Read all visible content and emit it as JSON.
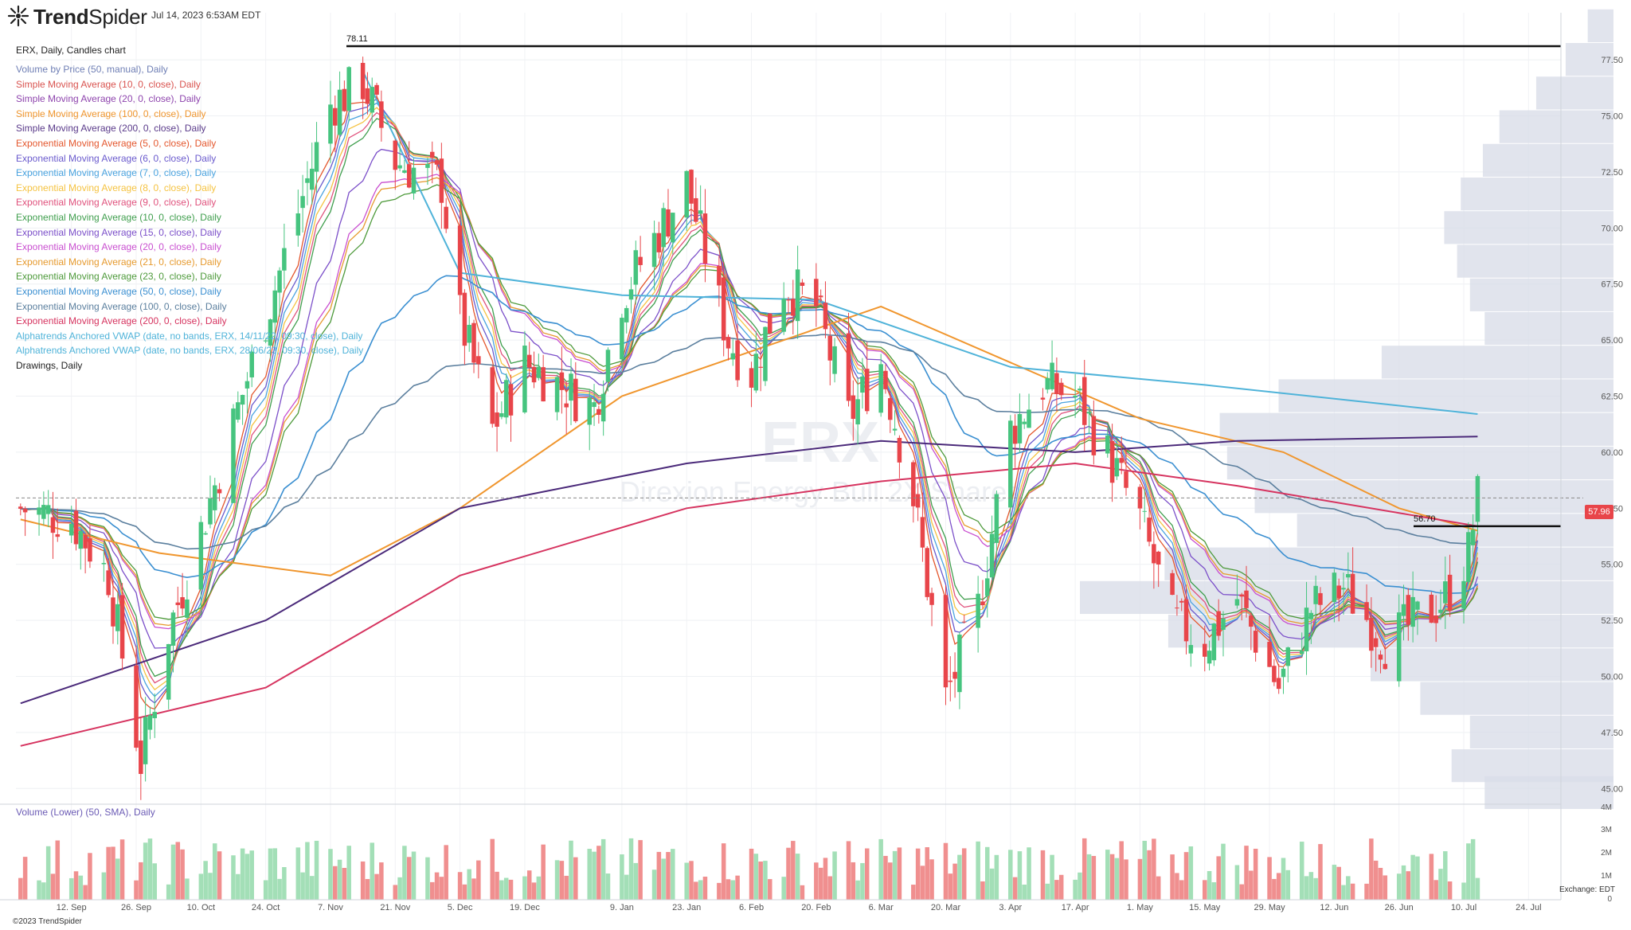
{
  "app": {
    "brand_prefix": "Trend",
    "brand_suffix": "Spider",
    "timestamp": "Jul 14, 2023 6:53AM EDT",
    "copyright": "©2023 TrendSpider",
    "exchange": "Exchange: EDT",
    "watermark_ticker": "ERX",
    "watermark_name": "Direxion Energy Bull 2X Shares"
  },
  "chart_title": "ERX, Daily, Candles chart",
  "legend": [
    {
      "text": "Volume by Price (50, manual), Daily",
      "color": "#6f7fb5"
    },
    {
      "text": "Simple Moving Average (10, 0, close), Daily",
      "color": "#d9534f"
    },
    {
      "text": "Simple Moving Average (20, 0, close), Daily",
      "color": "#8e44ad"
    },
    {
      "text": "Simple Moving Average (100, 0, close), Daily",
      "color": "#f0962e"
    },
    {
      "text": "Simple Moving Average (200, 0, close), Daily",
      "color": "#5a3a8a"
    },
    {
      "text": "Exponential Moving Average (5, 0, close), Daily",
      "color": "#e4572e"
    },
    {
      "text": "Exponential Moving Average (6, 0, close), Daily",
      "color": "#6a5acd"
    },
    {
      "text": "Exponential Moving Average (7, 0, close), Daily",
      "color": "#4aa3df"
    },
    {
      "text": "Exponential Moving Average (8, 0, close), Daily",
      "color": "#f5c342"
    },
    {
      "text": "Exponential Moving Average (9, 0, close), Daily",
      "color": "#e0527d"
    },
    {
      "text": "Exponential Moving Average (10, 0, close), Daily",
      "color": "#3f9e4d"
    },
    {
      "text": "Exponential Moving Average (15, 0, close), Daily",
      "color": "#7b4fc9"
    },
    {
      "text": "Exponential Moving Average (20, 0, close), Daily",
      "color": "#c94fd0"
    },
    {
      "text": "Exponential Moving Average (21, 0, close), Daily",
      "color": "#e69a2e"
    },
    {
      "text": "Exponential Moving Average (23, 0, close), Daily",
      "color": "#4e9a3b"
    },
    {
      "text": "Exponential Moving Average (50, 0, close), Daily",
      "color": "#3a8fd1"
    },
    {
      "text": "Exponential Moving Average (100, 0, close), Daily",
      "color": "#5b7f9e"
    },
    {
      "text": "Exponential Moving Average (200, 0, close), Daily",
      "color": "#d6335f"
    },
    {
      "text": "Alphatrends Anchored VWAP (date, no bands, ERX, 14/11/22, 09:30, close), Daily",
      "color": "#4fb3d9"
    },
    {
      "text": "Alphatrends Anchored VWAP (date, no bands, ERX, 28/06/23, 09:30, close), Daily",
      "color": "#4fb3d9"
    },
    {
      "text": "Drawings, Daily",
      "color": "#222222"
    }
  ],
  "volume_label": "Volume (Lower) (50, SMA), Daily",
  "current_price_label": "57.96",
  "colors": {
    "up": "#46c47f",
    "down": "#e8454a",
    "volume_up": "#a3dfb7",
    "volume_down": "#f08f8f",
    "vbp": "#d9dde9"
  },
  "chart_data": {
    "type": "candlestick",
    "symbol": "ERX",
    "interval": "Daily",
    "ylim": [
      44.3,
      79.6
    ],
    "y_ticks": [
      "77.50",
      "75.00",
      "72.50",
      "70.00",
      "67.50",
      "65.00",
      "62.50",
      "60.00",
      "57.50",
      "55.00",
      "52.50",
      "50.00",
      "47.50",
      "45.00"
    ],
    "x_ticks": [
      "12. Sep",
      "26. Sep",
      "10. Oct",
      "24. Oct",
      "7. Nov",
      "21. Nov",
      "5. Dec",
      "19. Dec",
      "9. Jan",
      "23. Jan",
      "6. Feb",
      "20. Feb",
      "6. Mar",
      "20. Mar",
      "3. Apr",
      "17. Apr",
      "1. May",
      "15. May",
      "29. May",
      "12. Jun",
      "26. Jun",
      "10. Jul",
      "24. Jul"
    ],
    "last_close": 57.96,
    "horizontal_levels": [
      {
        "price": 78.11,
        "label": "78.11"
      },
      {
        "price": 56.7,
        "label": "56.70"
      }
    ],
    "volume_ticks": [
      "4M",
      "3M",
      "2M",
      "1M",
      "0"
    ],
    "close_path": [
      {
        "x": "2022-09-01",
        "y": 57.5
      },
      {
        "x": "2022-09-12",
        "y": 57.0
      },
      {
        "x": "2022-09-20",
        "y": 54.5
      },
      {
        "x": "2022-09-27",
        "y": 46.2
      },
      {
        "x": "2022-10-03",
        "y": 52.0
      },
      {
        "x": "2022-10-10",
        "y": 56.5
      },
      {
        "x": "2022-10-24",
        "y": 66.0
      },
      {
        "x": "2022-11-07",
        "y": 75.5
      },
      {
        "x": "2022-11-14",
        "y": 76.5
      },
      {
        "x": "2022-11-21",
        "y": 73.0
      },
      {
        "x": "2022-12-01",
        "y": 72.0
      },
      {
        "x": "2022-12-05",
        "y": 66.0
      },
      {
        "x": "2022-12-12",
        "y": 61.0
      },
      {
        "x": "2022-12-19",
        "y": 64.0
      },
      {
        "x": "2023-01-03",
        "y": 62.0
      },
      {
        "x": "2023-01-09",
        "y": 67.0
      },
      {
        "x": "2023-01-23",
        "y": 72.0
      },
      {
        "x": "2023-02-01",
        "y": 65.0
      },
      {
        "x": "2023-02-06",
        "y": 63.5
      },
      {
        "x": "2023-02-13",
        "y": 67.5
      },
      {
        "x": "2023-02-20",
        "y": 66.5
      },
      {
        "x": "2023-02-27",
        "y": 61.5
      },
      {
        "x": "2023-03-06",
        "y": 64.0
      },
      {
        "x": "2023-03-13",
        "y": 58.0
      },
      {
        "x": "2023-03-20",
        "y": 49.0
      },
      {
        "x": "2023-03-27",
        "y": 53.0
      },
      {
        "x": "2023-04-03",
        "y": 61.0
      },
      {
        "x": "2023-04-10",
        "y": 63.0
      },
      {
        "x": "2023-04-17",
        "y": 62.5
      },
      {
        "x": "2023-04-25",
        "y": 59.5
      },
      {
        "x": "2023-05-01",
        "y": 57.0
      },
      {
        "x": "2023-05-08",
        "y": 52.5
      },
      {
        "x": "2023-05-15",
        "y": 51.5
      },
      {
        "x": "2023-05-22",
        "y": 53.5
      },
      {
        "x": "2023-05-31",
        "y": 49.5
      },
      {
        "x": "2023-06-07",
        "y": 53.0
      },
      {
        "x": "2023-06-14",
        "y": 54.0
      },
      {
        "x": "2023-06-23",
        "y": 51.5
      },
      {
        "x": "2023-06-30",
        "y": 52.5
      },
      {
        "x": "2023-07-06",
        "y": 53.5
      },
      {
        "x": "2023-07-11",
        "y": 55.5
      },
      {
        "x": "2023-07-13",
        "y": 57.96
      }
    ],
    "sma_100": [
      {
        "x": "2022-09-01",
        "y": 57.0
      },
      {
        "x": "2022-10-01",
        "y": 55.5
      },
      {
        "x": "2022-11-07",
        "y": 54.5
      },
      {
        "x": "2022-12-05",
        "y": 57.5
      },
      {
        "x": "2023-01-09",
        "y": 62.5
      },
      {
        "x": "2023-02-06",
        "y": 64.5
      },
      {
        "x": "2023-03-06",
        "y": 66.5
      },
      {
        "x": "2023-04-03",
        "y": 64.0
      },
      {
        "x": "2023-05-01",
        "y": 61.5
      },
      {
        "x": "2023-06-01",
        "y": 60.0
      },
      {
        "x": "2023-06-26",
        "y": 57.5
      },
      {
        "x": "2023-07-13",
        "y": 56.5
      }
    ],
    "sma_200": [
      {
        "x": "2022-09-01",
        "y": 48.8
      },
      {
        "x": "2022-10-24",
        "y": 52.5
      },
      {
        "x": "2022-12-05",
        "y": 57.5
      },
      {
        "x": "2023-01-23",
        "y": 59.5
      },
      {
        "x": "2023-03-06",
        "y": 60.5
      },
      {
        "x": "2023-04-17",
        "y": 60.0
      },
      {
        "x": "2023-05-22",
        "y": 60.5
      },
      {
        "x": "2023-07-13",
        "y": 60.7
      }
    ],
    "ema_200": [
      {
        "x": "2022-09-01",
        "y": 46.9
      },
      {
        "x": "2022-10-24",
        "y": 49.5
      },
      {
        "x": "2022-12-05",
        "y": 54.5
      },
      {
        "x": "2023-01-23",
        "y": 57.5
      },
      {
        "x": "2023-03-06",
        "y": 58.7
      },
      {
        "x": "2023-04-17",
        "y": 59.5
      },
      {
        "x": "2023-05-22",
        "y": 58.5
      },
      {
        "x": "2023-07-13",
        "y": 56.7
      }
    ],
    "vwap_nov": [
      {
        "x": "2022-11-14",
        "y": 77.0
      },
      {
        "x": "2022-12-05",
        "y": 68.0
      },
      {
        "x": "2023-01-09",
        "y": 67.0
      },
      {
        "x": "2023-02-20",
        "y": 66.8
      },
      {
        "x": "2023-04-03",
        "y": 63.8
      },
      {
        "x": "2023-05-15",
        "y": 63.0
      },
      {
        "x": "2023-07-13",
        "y": 61.7
      }
    ],
    "volume_by_price": [
      {
        "price": 79.0,
        "volume": 0.14
      },
      {
        "price": 77.5,
        "volume": 0.26
      },
      {
        "price": 76.0,
        "volume": 0.42
      },
      {
        "price": 74.5,
        "volume": 0.62
      },
      {
        "price": 73.0,
        "volume": 0.71
      },
      {
        "price": 71.5,
        "volume": 0.83
      },
      {
        "price": 70.0,
        "volume": 0.92
      },
      {
        "price": 68.5,
        "volume": 0.85
      },
      {
        "price": 67.0,
        "volume": 0.78
      },
      {
        "price": 65.5,
        "volume": 0.7
      },
      {
        "price": 64.0,
        "volume": 1.26
      },
      {
        "price": 62.5,
        "volume": 1.82
      },
      {
        "price": 61.0,
        "volume": 2.14
      },
      {
        "price": 59.5,
        "volume": 2.1
      },
      {
        "price": 58.0,
        "volume": 1.95
      },
      {
        "price": 56.5,
        "volume": 1.72
      },
      {
        "price": 55.0,
        "volume": 2.44
      },
      {
        "price": 53.5,
        "volume": 2.9
      },
      {
        "price": 52.0,
        "volume": 2.42
      },
      {
        "price": 50.5,
        "volume": 1.32
      },
      {
        "price": 49.0,
        "volume": 1.05
      },
      {
        "price": 47.5,
        "volume": 0.78
      },
      {
        "price": 46.0,
        "volume": 0.88
      },
      {
        "price": 44.8,
        "volume": 0.7
      }
    ]
  }
}
